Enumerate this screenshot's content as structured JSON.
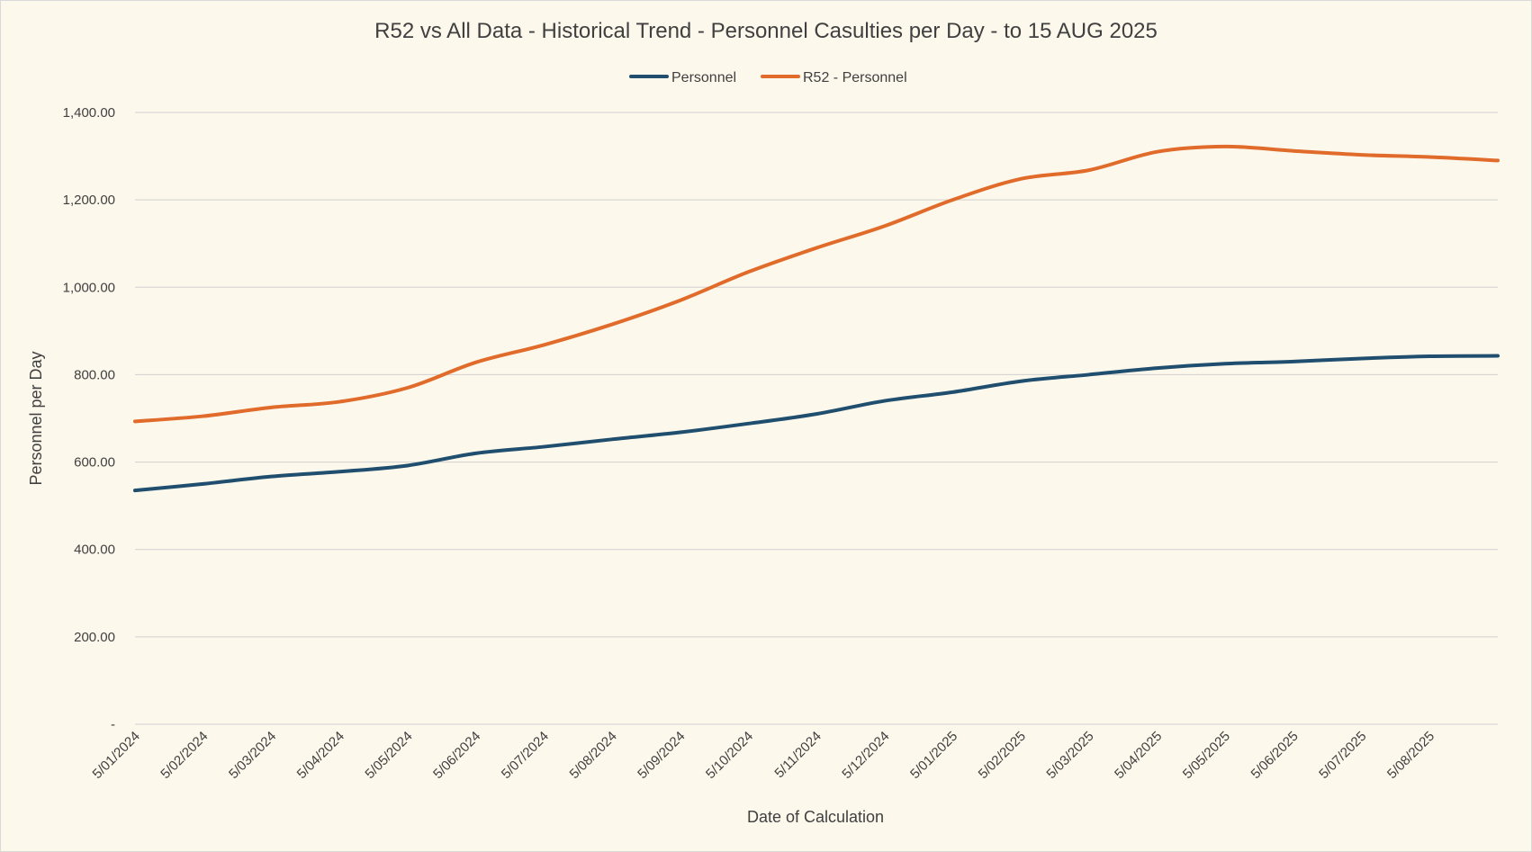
{
  "chart_data": {
    "type": "line",
    "title": "R52 vs All Data - Historical Trend - Personnel Casulties per Day - to 15 AUG 2025",
    "xlabel": "Date of Calculation",
    "ylabel": "Personnel per Day",
    "ylim": [
      0,
      1400
    ],
    "y_ticks": [
      {
        "value": 0,
        "label": "-"
      },
      {
        "value": 200,
        "label": "200.00"
      },
      {
        "value": 400,
        "label": "400.00"
      },
      {
        "value": 600,
        "label": "600.00"
      },
      {
        "value": 800,
        "label": "800.00"
      },
      {
        "value": 1000,
        "label": "1,000.00"
      },
      {
        "value": 1200,
        "label": "1,200.00"
      },
      {
        "value": 1400,
        "label": "1,400.00"
      }
    ],
    "x_ticks": [
      "5/01/2024",
      "5/02/2024",
      "5/03/2024",
      "5/04/2024",
      "5/05/2024",
      "5/06/2024",
      "5/07/2024",
      "5/08/2024",
      "5/09/2024",
      "5/10/2024",
      "5/11/2024",
      "5/12/2024",
      "5/01/2025",
      "5/02/2025",
      "5/03/2025",
      "5/04/2025",
      "5/05/2025",
      "5/06/2025",
      "5/07/2025",
      "5/08/2025"
    ],
    "grid": true,
    "legend_position": "top",
    "x": [
      "5/01/2024",
      "5/02/2024",
      "5/03/2024",
      "5/04/2024",
      "5/05/2024",
      "5/06/2024",
      "5/07/2024",
      "5/08/2024",
      "5/09/2024",
      "5/10/2024",
      "5/11/2024",
      "5/12/2024",
      "5/01/2025",
      "5/02/2025",
      "5/03/2025",
      "5/04/2025",
      "5/05/2025",
      "5/06/2025",
      "5/07/2025",
      "5/08/2025",
      "15/08/2025"
    ],
    "series": [
      {
        "name": "Personnel",
        "color": "#1f4e6e",
        "values": [
          535,
          550,
          567,
          578,
          592,
          620,
          635,
          652,
          668,
          688,
          710,
          740,
          760,
          785,
          800,
          815,
          825,
          830,
          837,
          842,
          843
        ]
      },
      {
        "name": "R52 - Personnel",
        "color": "#e06b2a",
        "values": [
          693,
          705,
          725,
          738,
          770,
          828,
          868,
          915,
          970,
          1035,
          1090,
          1140,
          1200,
          1248,
          1268,
          1310,
          1322,
          1312,
          1303,
          1298,
          1290
        ]
      }
    ]
  }
}
